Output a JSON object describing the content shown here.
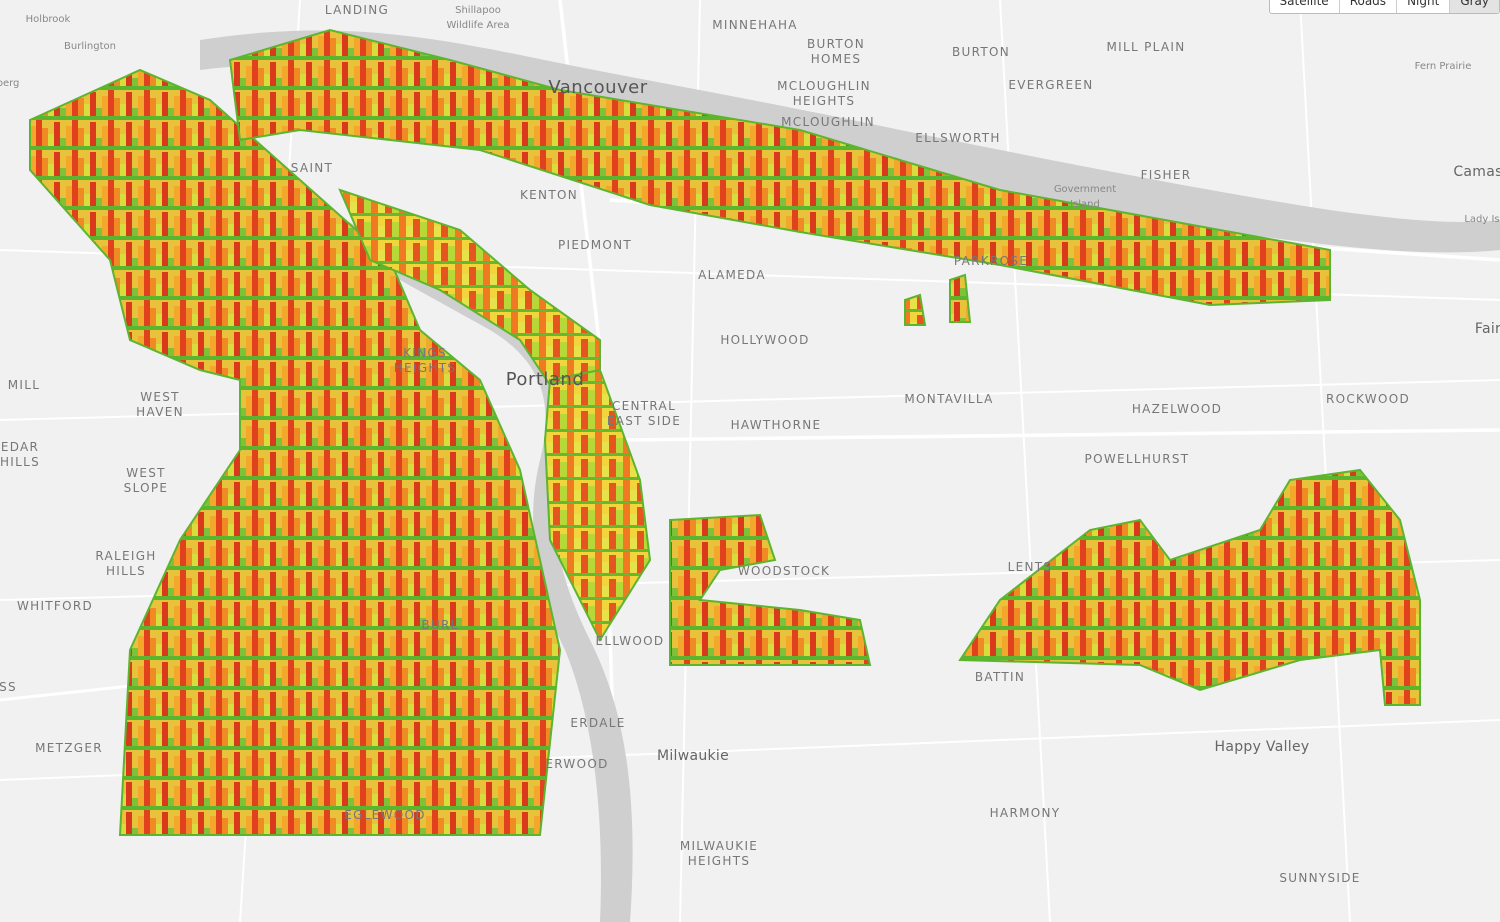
{
  "map": {
    "labels": [
      [
        "Holbrook"
      ],
      [
        "Burlington"
      ],
      [
        "berg"
      ],
      [
        "LANDING"
      ],
      [
        "Shillapoo",
        "Wildlife Area"
      ],
      [
        "MINNEHAHA"
      ],
      [
        "BURTON",
        "HOMES"
      ],
      [
        "BURTON"
      ],
      [
        "MILL PLAIN"
      ],
      [
        "EVERGREEN"
      ],
      [
        "Fern Prairie"
      ],
      [
        "Vancouver"
      ],
      [
        "MCLOUGHLIN",
        "HEIGHTS"
      ],
      [
        "MCLOUGHLIN"
      ],
      [
        "ELLSWORTH"
      ],
      [
        "FISHER"
      ],
      [
        "Government",
        "Island"
      ],
      [
        "Camas"
      ],
      [
        "Lady Is"
      ],
      [
        "KENTON"
      ],
      [
        "SAINT"
      ],
      [
        "PIEDMONT"
      ],
      [
        "ALAMEDA"
      ],
      [
        "PARKROSE"
      ],
      [
        "Fair"
      ],
      [
        "HOLLYWOOD"
      ],
      [
        "KINGS",
        "HEIGHTS"
      ],
      [
        "MILL"
      ],
      [
        "WEST",
        "HAVEN"
      ],
      [
        "Portland"
      ],
      [
        "CENTRAL",
        "EAST SIDE"
      ],
      [
        "HAWTHORNE"
      ],
      [
        "MONTAVILLA"
      ],
      [
        "HAZELWOOD"
      ],
      [
        "ROCKWOOD"
      ],
      [
        "EDAR",
        "HILLS"
      ],
      [
        "POWELLHURST"
      ],
      [
        "WEST",
        "SLOPE"
      ],
      [
        "RALEIGH",
        "HILLS"
      ],
      [
        "WOODSTOCK"
      ],
      [
        "LENTS"
      ],
      [
        "WHITFORD"
      ],
      [
        "ELLWOOD"
      ],
      [
        "BURL"
      ],
      [
        "BATTIN"
      ],
      [
        "SS"
      ],
      [
        "METZGER"
      ],
      [
        "Happy Valley"
      ],
      [
        "Milwaukie"
      ],
      [
        "ERDALE"
      ],
      [
        "ERWOOD"
      ],
      [
        "EGLEWOOD"
      ],
      [
        "HARMONY"
      ],
      [
        "MILWAUKIE",
        "HEIGHTS"
      ],
      [
        "SUNNYSIDE"
      ]
    ]
  },
  "controls": {
    "buttons": [
      "Satellite",
      "Roads",
      "Night",
      "Gray"
    ],
    "active": 3
  }
}
